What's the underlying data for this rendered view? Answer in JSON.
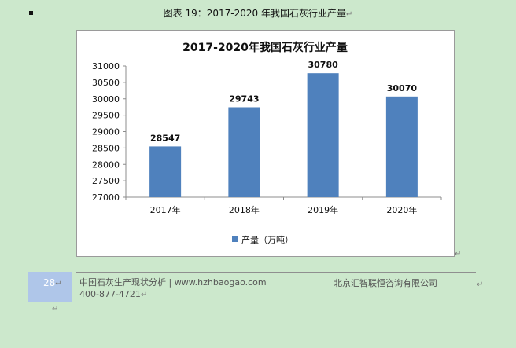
{
  "caption": {
    "text": "图表  19：2017-2020 年我国石灰行业产量",
    "para_mark": "↵"
  },
  "chart_data": {
    "type": "bar",
    "title": "2017-2020年我国石灰行业产量",
    "categories": [
      "2017年",
      "2018年",
      "2019年",
      "2020年"
    ],
    "series": [
      {
        "name": "产量（万吨）",
        "values": [
          28547,
          29743,
          30780,
          30070
        ]
      }
    ],
    "ylim": [
      27000,
      31000
    ],
    "ytick_step": 500,
    "xlabel": "",
    "ylabel": "",
    "legend_position": "bottom",
    "grid": false,
    "bar_color": "#4f81bd"
  },
  "footer": {
    "page_number": "28",
    "left_line1": "中国石灰生产现状分析 | www.hzhbaogao.com",
    "left_line2": "400-877-4721",
    "right_text": "北京汇智联恒咨询有限公司",
    "para_mark": "↵"
  }
}
